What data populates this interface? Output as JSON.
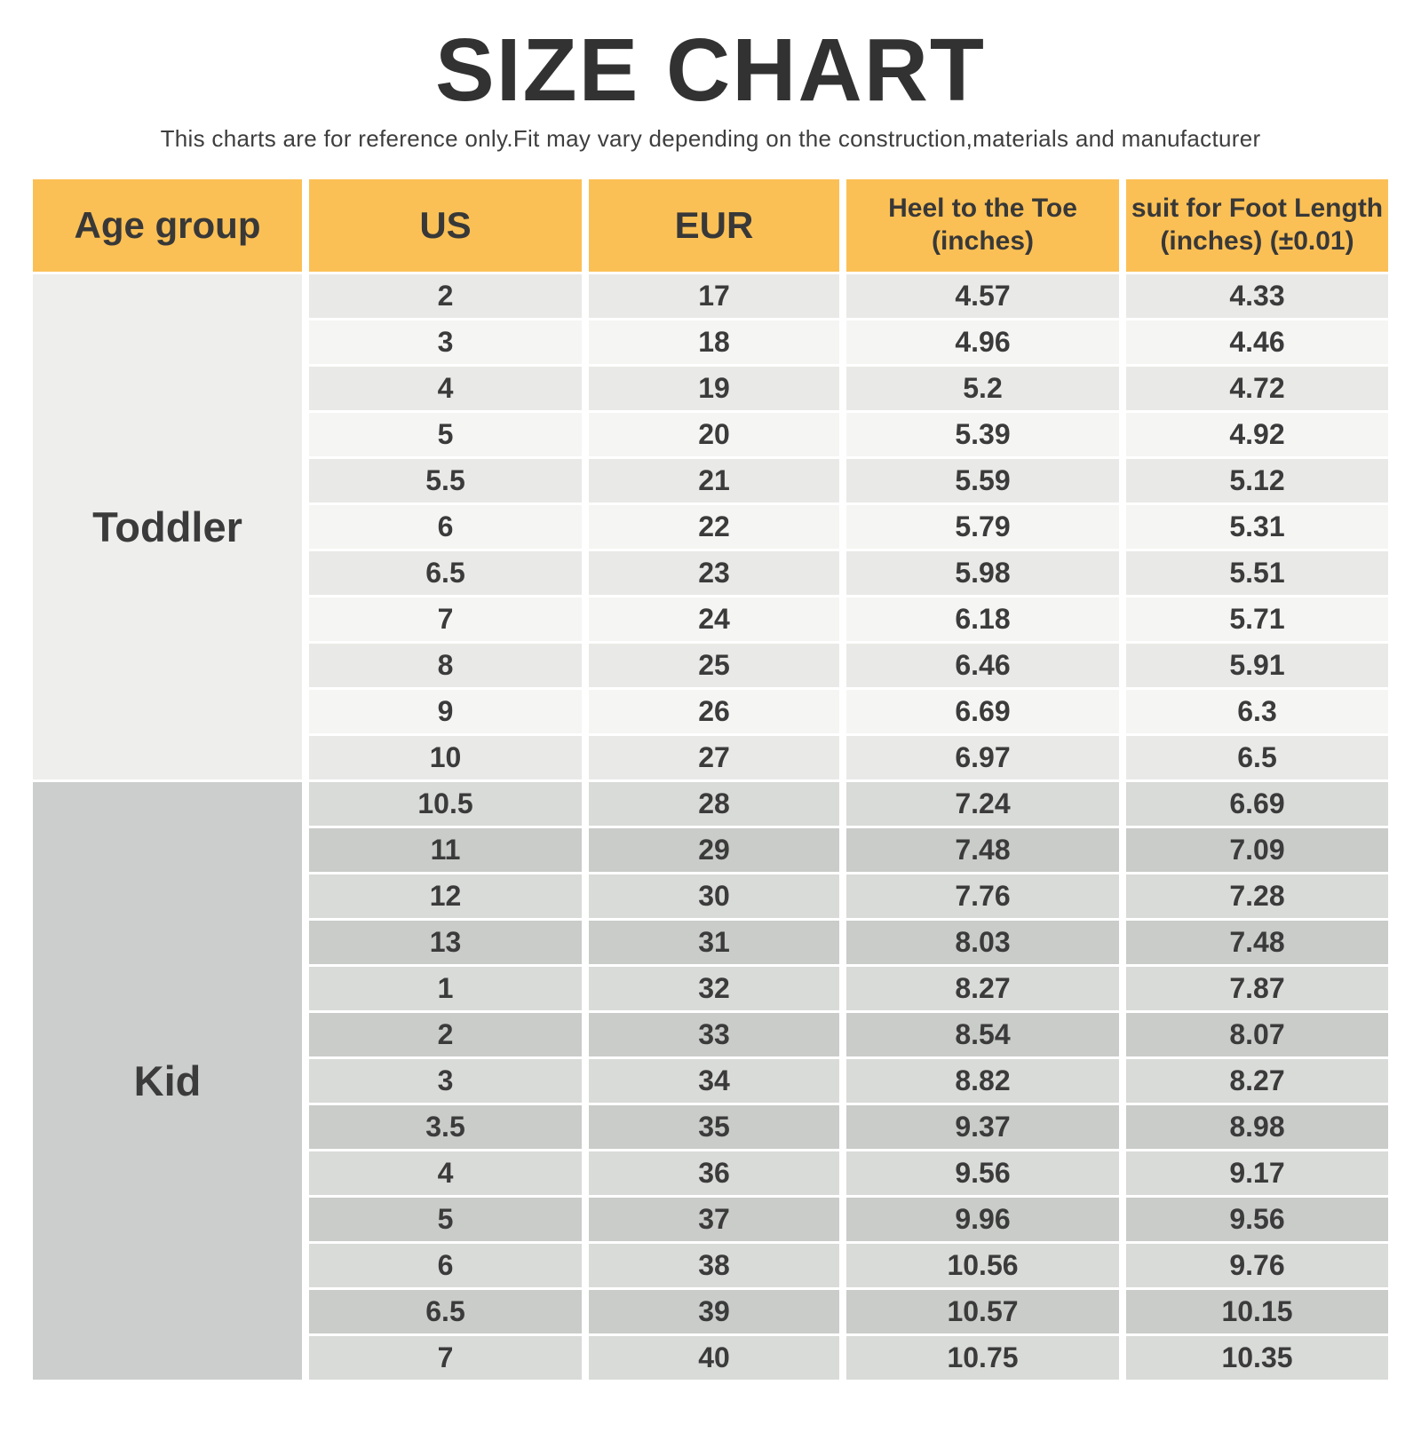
{
  "title": "SIZE CHART",
  "subtitle": "This charts are for reference only.Fit may vary depending on the construction,materials and manufacturer",
  "colors": {
    "header_bg": "#FBC055",
    "text_dark": "#3B3B3B",
    "toddler_label_bg": "#EEEFED",
    "toddler_row_dark": "#E9EAE7",
    "toddler_row_light": "#F5F6F3",
    "kid_label_bg": "#CBCECC",
    "kid_row_light": "#D9DBD8",
    "kid_row_dark": "#C9CCC9"
  },
  "chart_data": {
    "type": "table",
    "title": "SIZE CHART",
    "subtitle": "This charts are for reference only.Fit may vary depending on the construction,materials and manufacturer",
    "columns": [
      "Age group",
      "US",
      "EUR",
      "Heel to the Toe (inches)",
      "suit for Foot Length (inches) (±0.01)"
    ],
    "header_lines": [
      {
        "line1": "Age group",
        "line2": ""
      },
      {
        "line1": "US",
        "line2": ""
      },
      {
        "line1": "EUR",
        "line2": ""
      },
      {
        "line1": "Heel to the Toe",
        "line2": "(inches)"
      },
      {
        "line1": "suit for Foot Length",
        "line2": "(inches) (±0.01)"
      }
    ],
    "groups": [
      {
        "label": "Toddler",
        "rows": [
          [
            "2",
            "17",
            "4.57",
            "4.33"
          ],
          [
            "3",
            "18",
            "4.96",
            "4.46"
          ],
          [
            "4",
            "19",
            "5.2",
            "4.72"
          ],
          [
            "5",
            "20",
            "5.39",
            "4.92"
          ],
          [
            "5.5",
            "21",
            "5.59",
            "5.12"
          ],
          [
            "6",
            "22",
            "5.79",
            "5.31"
          ],
          [
            "6.5",
            "23",
            "5.98",
            "5.51"
          ],
          [
            "7",
            "24",
            "6.18",
            "5.71"
          ],
          [
            "8",
            "25",
            "6.46",
            "5.91"
          ],
          [
            "9",
            "26",
            "6.69",
            "6.3"
          ],
          [
            "10",
            "27",
            "6.97",
            "6.5"
          ]
        ]
      },
      {
        "label": "Kid",
        "rows": [
          [
            "10.5",
            "28",
            "7.24",
            "6.69"
          ],
          [
            "11",
            "29",
            "7.48",
            "7.09"
          ],
          [
            "12",
            "30",
            "7.76",
            "7.28"
          ],
          [
            "13",
            "31",
            "8.03",
            "7.48"
          ],
          [
            "1",
            "32",
            "8.27",
            "7.87"
          ],
          [
            "2",
            "33",
            "8.54",
            "8.07"
          ],
          [
            "3",
            "34",
            "8.82",
            "8.27"
          ],
          [
            "3.5",
            "35",
            "9.37",
            "8.98"
          ],
          [
            "4",
            "36",
            "9.56",
            "9.17"
          ],
          [
            "5",
            "37",
            "9.96",
            "9.56"
          ],
          [
            "6",
            "38",
            "10.56",
            "9.76"
          ],
          [
            "6.5",
            "39",
            "10.57",
            "10.15"
          ],
          [
            "7",
            "40",
            "10.75",
            "10.35"
          ]
        ]
      }
    ]
  }
}
